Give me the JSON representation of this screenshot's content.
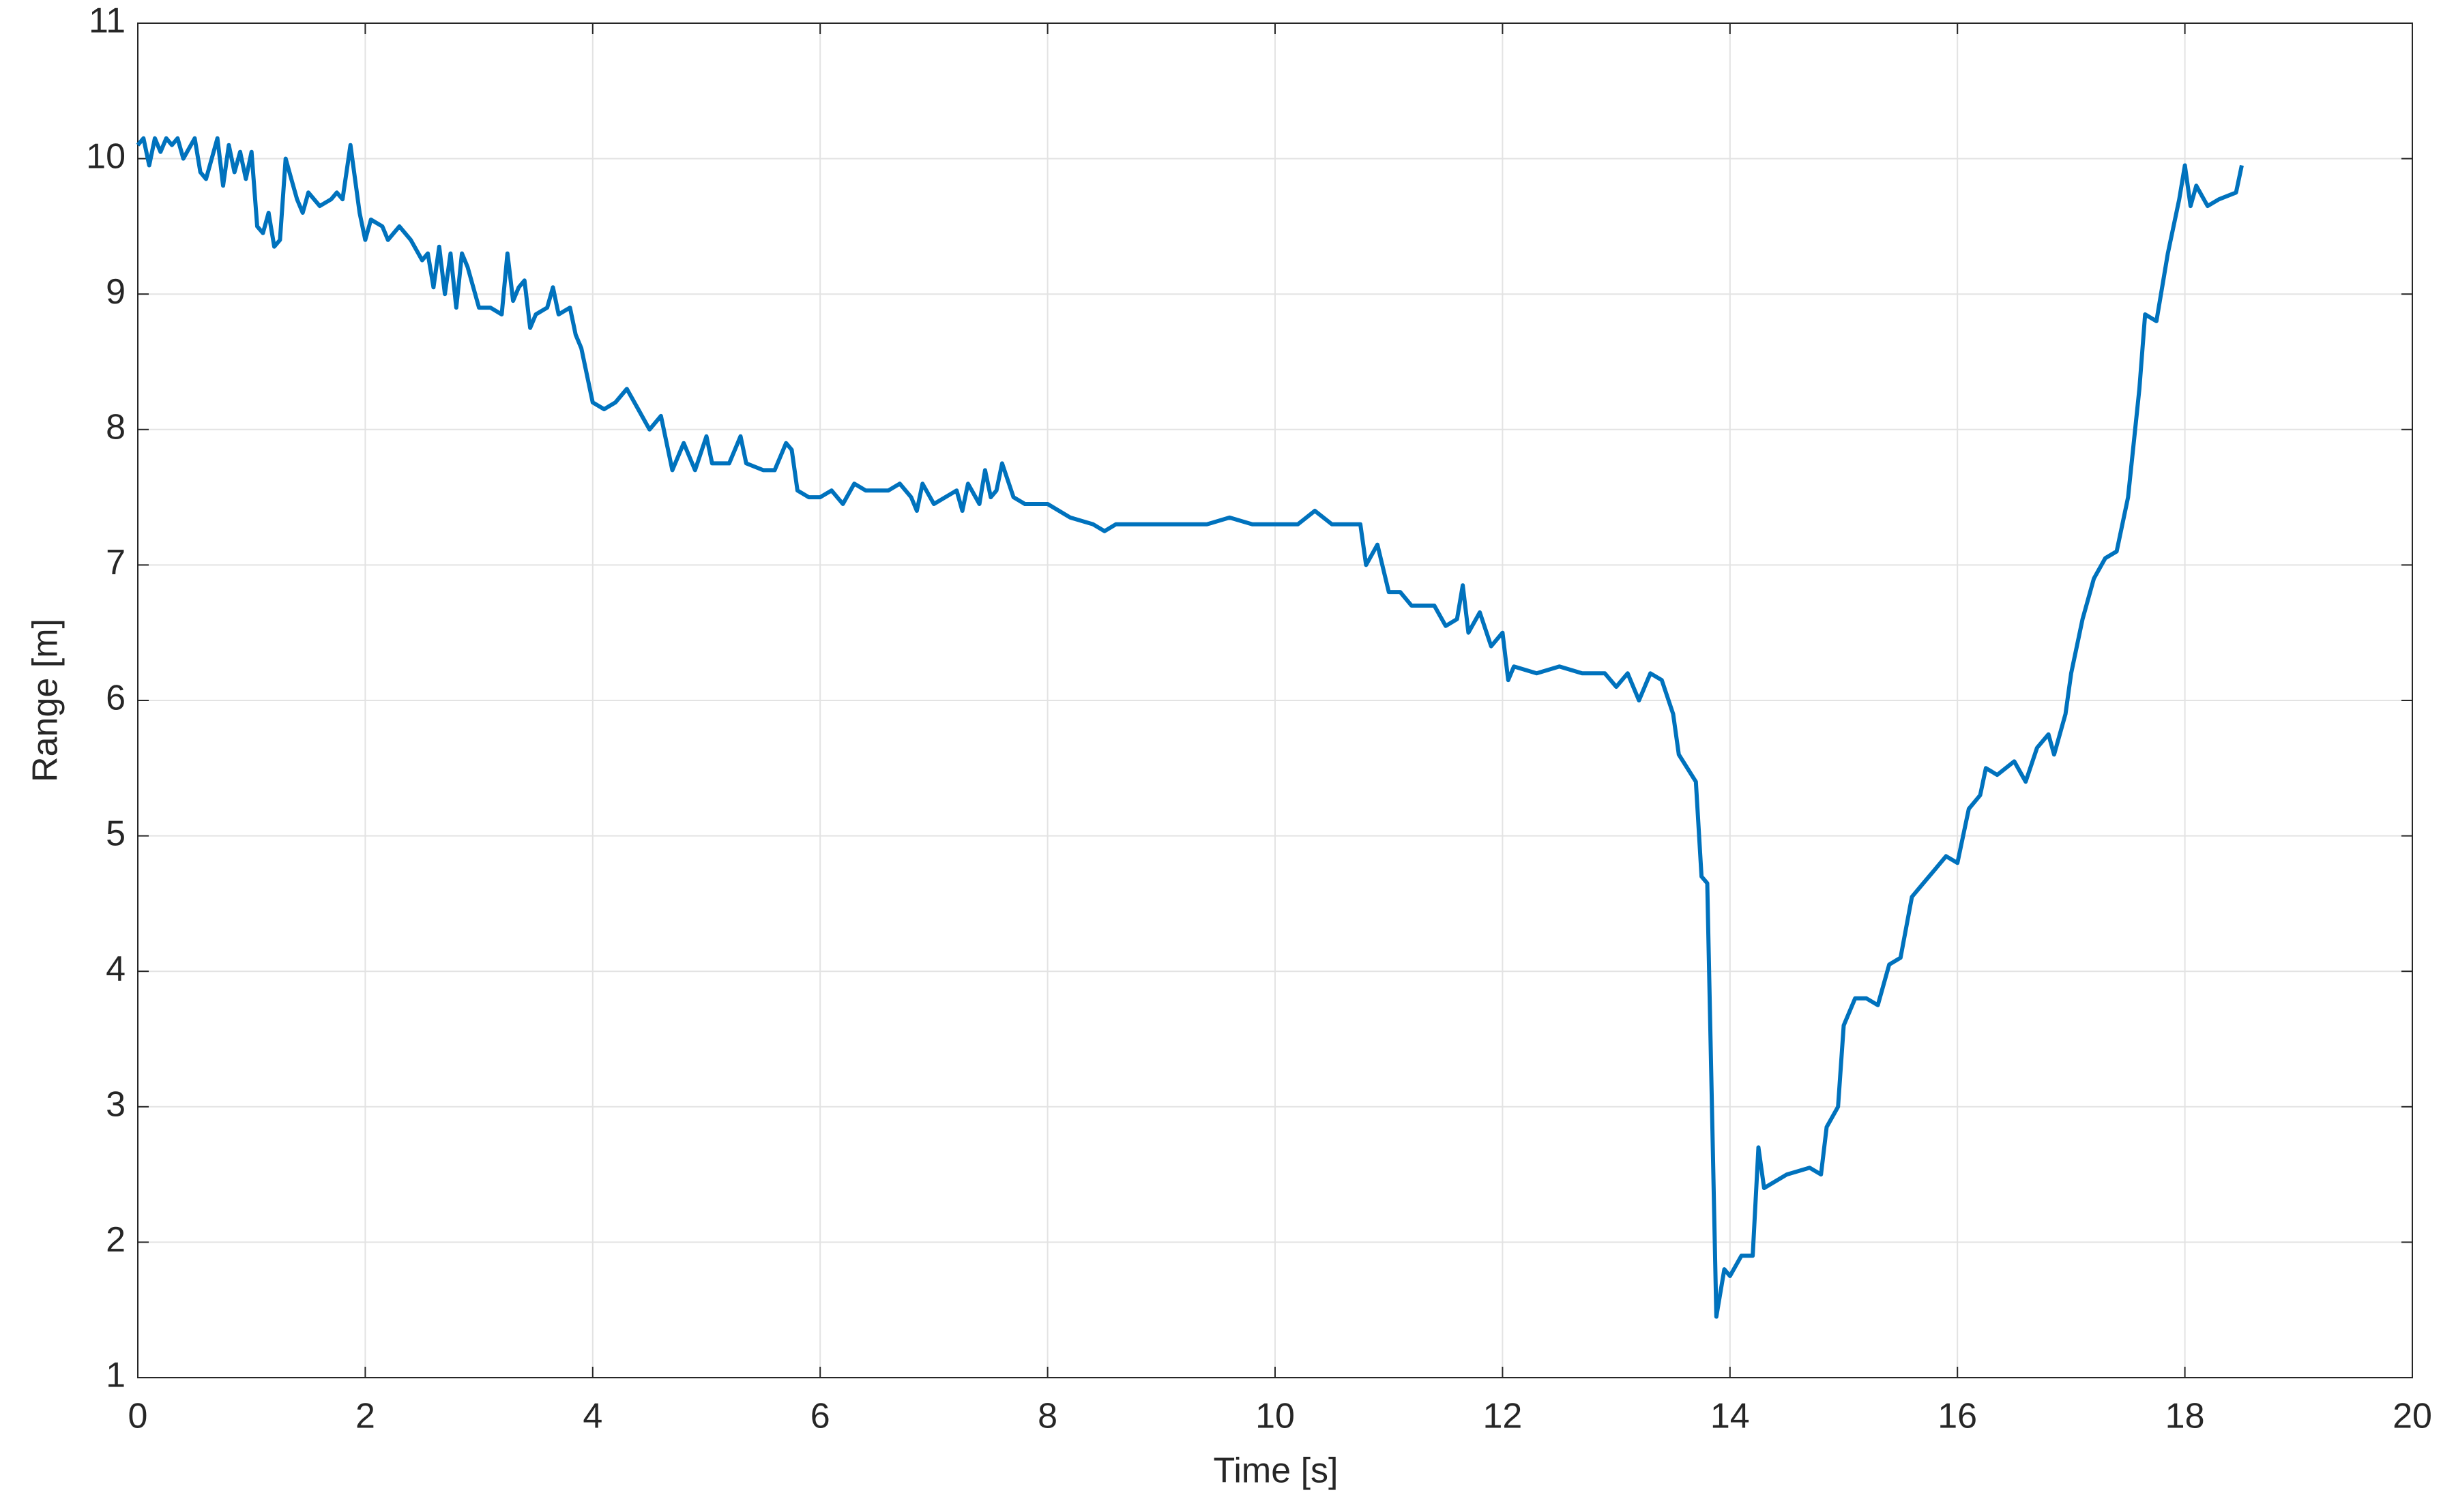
{
  "chart_data": {
    "type": "line",
    "xlabel": "Time [s]",
    "ylabel": "Range [m]",
    "xlim": [
      0,
      20
    ],
    "xticks": [
      0,
      2,
      4,
      6,
      8,
      10,
      12,
      14,
      16,
      18,
      20
    ],
    "ylim": [
      1,
      11
    ],
    "yticks": [
      1,
      2,
      3,
      4,
      5,
      6,
      7,
      8,
      9,
      10,
      11
    ],
    "grid": true,
    "x": [
      0,
      0.05,
      0.1,
      0.15,
      0.2,
      0.25,
      0.3,
      0.35,
      0.4,
      0.5,
      0.55,
      0.6,
      0.7,
      0.75,
      0.8,
      0.85,
      0.9,
      0.95,
      1.0,
      1.05,
      1.1,
      1.15,
      1.2,
      1.25,
      1.3,
      1.35,
      1.4,
      1.45,
      1.5,
      1.6,
      1.7,
      1.75,
      1.8,
      1.87,
      1.95,
      2.0,
      2.05,
      2.15,
      2.2,
      2.3,
      2.4,
      2.5,
      2.55,
      2.6,
      2.65,
      2.7,
      2.75,
      2.8,
      2.85,
      2.9,
      3.0,
      3.1,
      3.2,
      3.25,
      3.3,
      3.35,
      3.4,
      3.45,
      3.5,
      3.6,
      3.65,
      3.7,
      3.8,
      3.85,
      3.9,
      4.0,
      4.1,
      4.2,
      4.3,
      4.4,
      4.5,
      4.6,
      4.7,
      4.8,
      4.9,
      5.0,
      5.05,
      5.2,
      5.3,
      5.35,
      5.5,
      5.6,
      5.7,
      5.75,
      5.8,
      5.9,
      6.0,
      6.1,
      6.2,
      6.3,
      6.4,
      6.6,
      6.7,
      6.8,
      6.85,
      6.9,
      7.0,
      7.1,
      7.2,
      7.25,
      7.3,
      7.4,
      7.45,
      7.5,
      7.55,
      7.6,
      7.7,
      7.8,
      8.0,
      8.2,
      8.4,
      8.5,
      8.6,
      8.8,
      9.0,
      9.2,
      9.4,
      9.6,
      9.8,
      10.0,
      10.2,
      10.35,
      10.5,
      10.6,
      10.75,
      10.8,
      10.9,
      11.0,
      11.1,
      11.2,
      11.4,
      11.5,
      11.6,
      11.65,
      11.7,
      11.8,
      11.9,
      12.0,
      12.05,
      12.1,
      12.3,
      12.5,
      12.7,
      12.9,
      13.0,
      13.1,
      13.2,
      13.3,
      13.4,
      13.5,
      13.55,
      13.7,
      13.75,
      13.8,
      13.88,
      13.95,
      14.0,
      14.1,
      14.2,
      14.25,
      14.3,
      14.5,
      14.7,
      14.8,
      14.85,
      14.95,
      15.0,
      15.1,
      15.2,
      15.3,
      15.4,
      15.5,
      15.6,
      15.7,
      15.8,
      15.9,
      16.0,
      16.1,
      16.2,
      16.25,
      16.35,
      16.5,
      16.6,
      16.7,
      16.8,
      16.85,
      16.95,
      17.0,
      17.1,
      17.2,
      17.3,
      17.4,
      17.5,
      17.6,
      17.65,
      17.75,
      17.85,
      17.95,
      18.0,
      18.05,
      18.1,
      18.2,
      18.3,
      18.45,
      18.5
    ],
    "series": [
      {
        "name": "Range",
        "color": "#0072bd",
        "values": [
          10.1,
          10.15,
          9.95,
          10.15,
          10.05,
          10.15,
          10.1,
          10.15,
          10.0,
          10.15,
          9.9,
          9.85,
          10.15,
          9.8,
          10.1,
          9.9,
          10.05,
          9.85,
          10.05,
          9.5,
          9.45,
          9.6,
          9.35,
          9.4,
          10.0,
          9.85,
          9.7,
          9.6,
          9.75,
          9.65,
          9.7,
          9.75,
          9.7,
          10.1,
          9.6,
          9.4,
          9.55,
          9.5,
          9.4,
          9.5,
          9.4,
          9.25,
          9.3,
          9.05,
          9.35,
          9.0,
          9.3,
          8.9,
          9.3,
          9.2,
          8.9,
          8.9,
          8.85,
          9.3,
          8.95,
          9.05,
          9.1,
          8.75,
          8.85,
          8.9,
          9.05,
          8.85,
          8.9,
          8.7,
          8.6,
          8.2,
          8.15,
          8.2,
          8.3,
          8.15,
          8.0,
          8.1,
          7.7,
          7.9,
          7.7,
          7.95,
          7.75,
          7.75,
          7.95,
          7.75,
          7.7,
          7.7,
          7.9,
          7.85,
          7.55,
          7.5,
          7.5,
          7.55,
          7.45,
          7.6,
          7.55,
          7.55,
          7.6,
          7.5,
          7.4,
          7.6,
          7.45,
          7.5,
          7.55,
          7.4,
          7.6,
          7.45,
          7.7,
          7.5,
          7.55,
          7.75,
          7.5,
          7.45,
          7.45,
          7.35,
          7.3,
          7.25,
          7.3,
          7.3,
          7.3,
          7.3,
          7.3,
          7.35,
          7.3,
          7.3,
          7.3,
          7.4,
          7.3,
          7.3,
          7.3,
          7.0,
          7.15,
          6.8,
          6.8,
          6.7,
          6.7,
          6.55,
          6.6,
          6.85,
          6.5,
          6.65,
          6.4,
          6.5,
          6.15,
          6.25,
          6.2,
          6.25,
          6.2,
          6.2,
          6.1,
          6.2,
          6.0,
          6.2,
          6.15,
          5.9,
          5.6,
          5.4,
          4.7,
          4.65,
          1.45,
          1.8,
          1.75,
          1.9,
          1.9,
          2.7,
          2.4,
          2.5,
          2.55,
          2.5,
          2.85,
          3.0,
          3.6,
          3.8,
          3.8,
          3.75,
          4.05,
          4.1,
          4.55,
          4.65,
          4.75,
          4.85,
          4.8,
          5.2,
          5.3,
          5.5,
          5.45,
          5.55,
          5.4,
          5.65,
          5.75,
          5.6,
          5.9,
          6.2,
          6.6,
          6.9,
          7.05,
          7.1,
          7.5,
          8.3,
          8.85,
          8.8,
          9.3,
          9.7,
          9.95,
          9.65,
          9.8,
          9.65,
          9.7,
          9.75,
          9.95
        ]
      }
    ]
  }
}
